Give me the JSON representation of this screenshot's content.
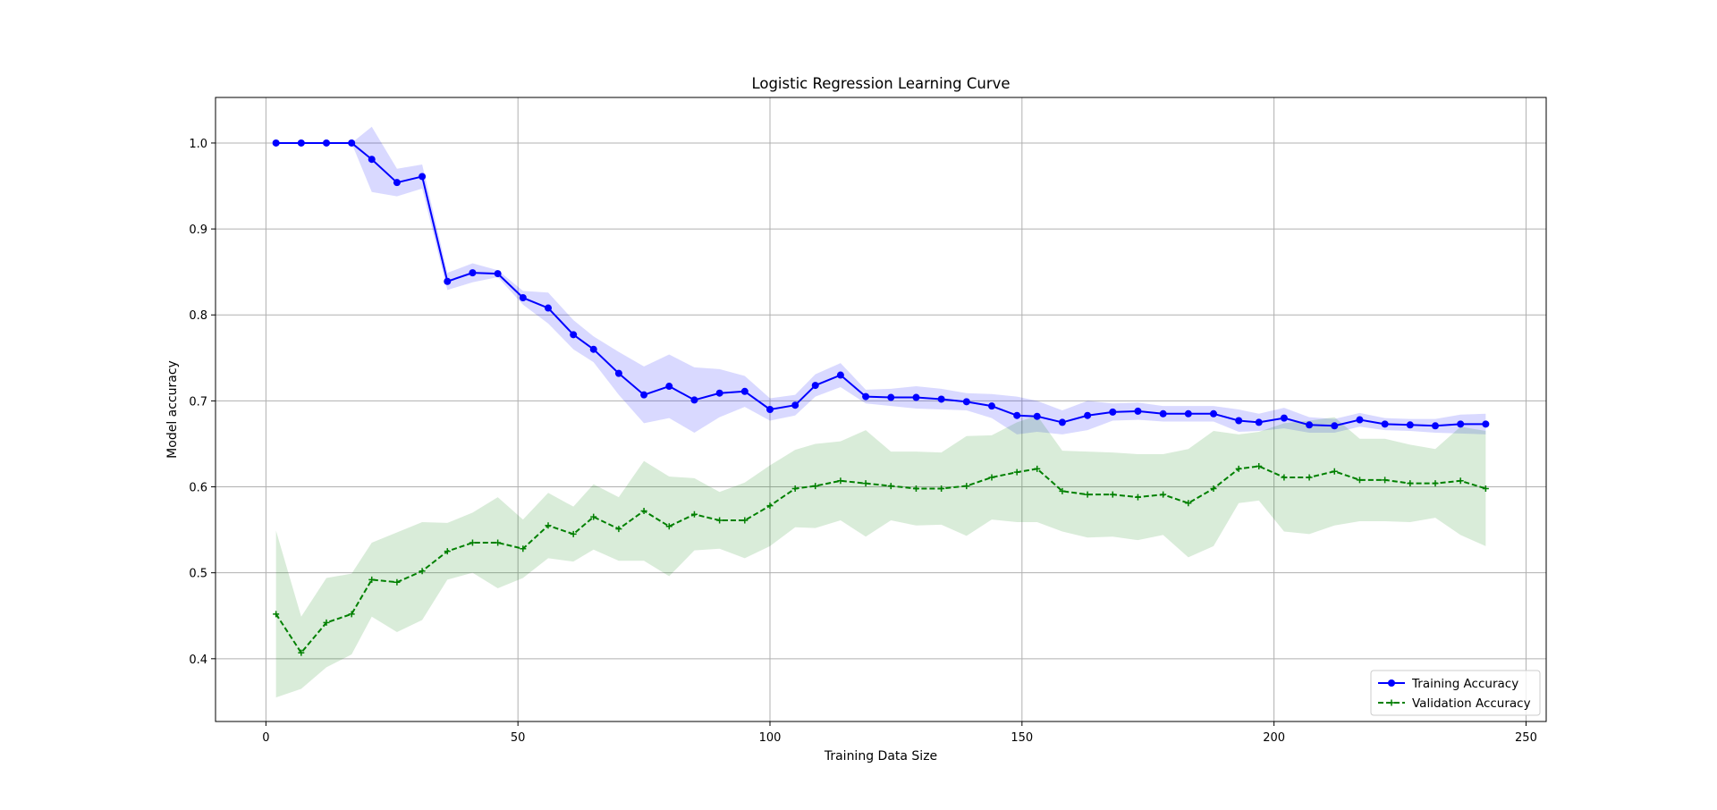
{
  "chart_data": {
    "type": "line",
    "title": "Logistic Regression Learning Curve",
    "xlabel": "Training Data Size",
    "ylabel": "Model accuracy",
    "xlim": [
      -10,
      254
    ],
    "ylim": [
      0.327,
      1.053
    ],
    "xticks": [
      0,
      50,
      100,
      150,
      200,
      250
    ],
    "yticks": [
      0.4,
      0.5,
      0.6,
      0.7,
      0.8,
      0.9,
      1.0
    ],
    "xtick_labels": [
      "0",
      "50",
      "100",
      "150",
      "200",
      "250"
    ],
    "ytick_labels": [
      "0.4",
      "0.5",
      "0.6",
      "0.7",
      "0.8",
      "0.9",
      "1.0"
    ],
    "grid": true,
    "legend_position": "lower-right",
    "x": [
      2,
      7,
      12,
      17,
      21,
      26,
      31,
      36,
      41,
      46,
      51,
      56,
      61,
      65,
      70,
      75,
      80,
      85,
      90,
      95,
      100,
      105,
      109,
      114,
      119,
      124,
      129,
      134,
      139,
      144,
      149,
      153,
      158,
      163,
      168,
      173,
      178,
      183,
      188,
      193,
      197,
      202,
      207,
      212,
      217,
      222,
      227,
      232,
      237,
      242
    ],
    "series": [
      {
        "name": "Training Accuracy",
        "color": "#0000ff",
        "band_color": "#0000ff",
        "marker": "circle",
        "linestyle": "solid",
        "values": [
          1.0,
          1.0,
          1.0,
          1.0,
          0.981,
          0.954,
          0.961,
          0.839,
          0.849,
          0.848,
          0.82,
          0.808,
          0.777,
          0.76,
          0.732,
          0.707,
          0.717,
          0.701,
          0.709,
          0.711,
          0.69,
          0.695,
          0.718,
          0.73,
          0.705,
          0.704,
          0.704,
          0.702,
          0.699,
          0.694,
          0.683,
          0.682,
          0.675,
          0.683,
          0.687,
          0.688,
          0.685,
          0.685,
          0.685,
          0.677,
          0.675,
          0.68,
          0.672,
          0.671,
          0.678,
          0.673,
          0.672,
          0.671,
          0.673,
          0.673
        ],
        "band": [
          0.0,
          0.0,
          0.0,
          0.0,
          0.038,
          0.016,
          0.014,
          0.01,
          0.011,
          0.004,
          0.008,
          0.018,
          0.017,
          0.015,
          0.025,
          0.033,
          0.037,
          0.038,
          0.028,
          0.018,
          0.013,
          0.012,
          0.013,
          0.014,
          0.008,
          0.01,
          0.013,
          0.012,
          0.01,
          0.014,
          0.022,
          0.018,
          0.014,
          0.017,
          0.01,
          0.01,
          0.009,
          0.009,
          0.009,
          0.013,
          0.01,
          0.012,
          0.009,
          0.008,
          0.008,
          0.007,
          0.007,
          0.008,
          0.011,
          0.012
        ]
      },
      {
        "name": "Validation Accuracy",
        "color": "#008000",
        "band_color": "#008000",
        "marker": "plus",
        "linestyle": "dashed",
        "values": [
          0.452,
          0.407,
          0.442,
          0.452,
          0.492,
          0.489,
          0.502,
          0.525,
          0.535,
          0.535,
          0.528,
          0.555,
          0.545,
          0.565,
          0.551,
          0.572,
          0.554,
          0.568,
          0.561,
          0.561,
          0.578,
          0.598,
          0.601,
          0.607,
          0.604,
          0.601,
          0.598,
          0.598,
          0.601,
          0.611,
          0.617,
          0.621,
          0.595,
          0.591,
          0.591,
          0.588,
          0.591,
          0.581,
          0.598,
          0.621,
          0.624,
          0.611,
          0.611,
          0.618,
          0.608,
          0.608,
          0.604,
          0.604,
          0.607,
          0.598
        ],
        "band": [
          0.097,
          0.042,
          0.052,
          0.047,
          0.043,
          0.058,
          0.057,
          0.033,
          0.035,
          0.053,
          0.034,
          0.038,
          0.032,
          0.038,
          0.037,
          0.058,
          0.058,
          0.042,
          0.033,
          0.044,
          0.047,
          0.045,
          0.049,
          0.046,
          0.062,
          0.04,
          0.043,
          0.042,
          0.058,
          0.049,
          0.058,
          0.062,
          0.047,
          0.05,
          0.049,
          0.05,
          0.047,
          0.063,
          0.067,
          0.04,
          0.04,
          0.063,
          0.066,
          0.063,
          0.048,
          0.048,
          0.045,
          0.04,
          0.063,
          0.067
        ]
      }
    ]
  }
}
